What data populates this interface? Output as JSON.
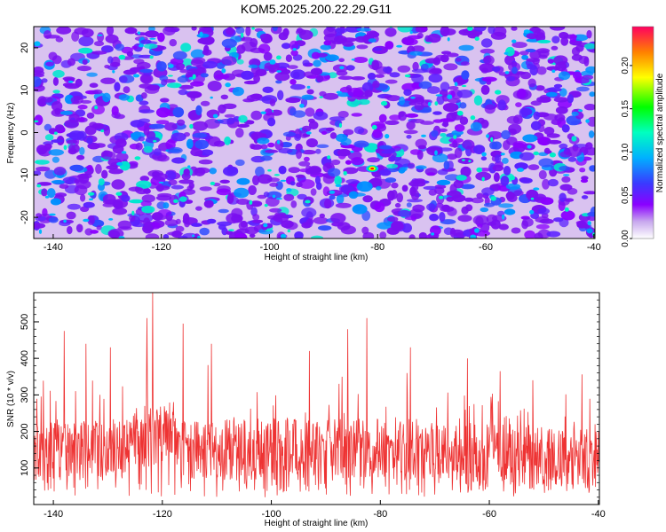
{
  "title": "KOM5.2025.200.22.29.G11",
  "chart_data": [
    {
      "type": "heatmap",
      "title": "KOM5.2025.200.22.29.G11",
      "xlabel": "Height of straight line (km)",
      "ylabel": "Frequency (Hz)",
      "xlim": [
        -143.6,
        -39.8
      ],
      "ylim": [
        -25,
        25
      ],
      "xticks": [
        "-140",
        "-120",
        "-100",
        "-80",
        "-60",
        "-40"
      ],
      "yticks": [
        "-20",
        "-10",
        "0",
        "10",
        "20"
      ],
      "colorbar": {
        "label": "Normalized spectral amplitude",
        "range": [
          0,
          0.245
        ],
        "ticks": [
          "0.00",
          "0.05",
          "0.10",
          "0.15",
          "0.20"
        ]
      },
      "peak": {
        "x": -81,
        "y": -8.5,
        "value": 0.24
      },
      "grid": false
    },
    {
      "type": "line",
      "xlabel": "Height of straight line (km)",
      "ylabel": "SNR (10 * v/v)",
      "xlim": [
        -143.6,
        -39.8
      ],
      "ylim": [
        0,
        580
      ],
      "xticks": [
        "-140",
        "-120",
        "-100",
        "-80",
        "-60",
        "-40"
      ],
      "yticks": [
        "100",
        "200",
        "300",
        "400",
        "500"
      ],
      "color": "#ee3333",
      "peaks": [
        {
          "x": -121.8,
          "y": 580
        },
        {
          "x": -122.8,
          "y": 510
        },
        {
          "x": -116.2,
          "y": 495
        },
        {
          "x": -82.5,
          "y": 510
        },
        {
          "x": -138.0,
          "y": 475
        },
        {
          "x": -86.0,
          "y": 480
        },
        {
          "x": -134.0,
          "y": 440
        },
        {
          "x": -129.5,
          "y": 430
        },
        {
          "x": -111.0,
          "y": 440
        },
        {
          "x": -93.0,
          "y": 420
        },
        {
          "x": -74.5,
          "y": 430
        },
        {
          "x": -64.0,
          "y": 400
        },
        {
          "x": -58.0,
          "y": 365
        },
        {
          "x": -52.0,
          "y": 340
        }
      ],
      "grid": false
    }
  ]
}
